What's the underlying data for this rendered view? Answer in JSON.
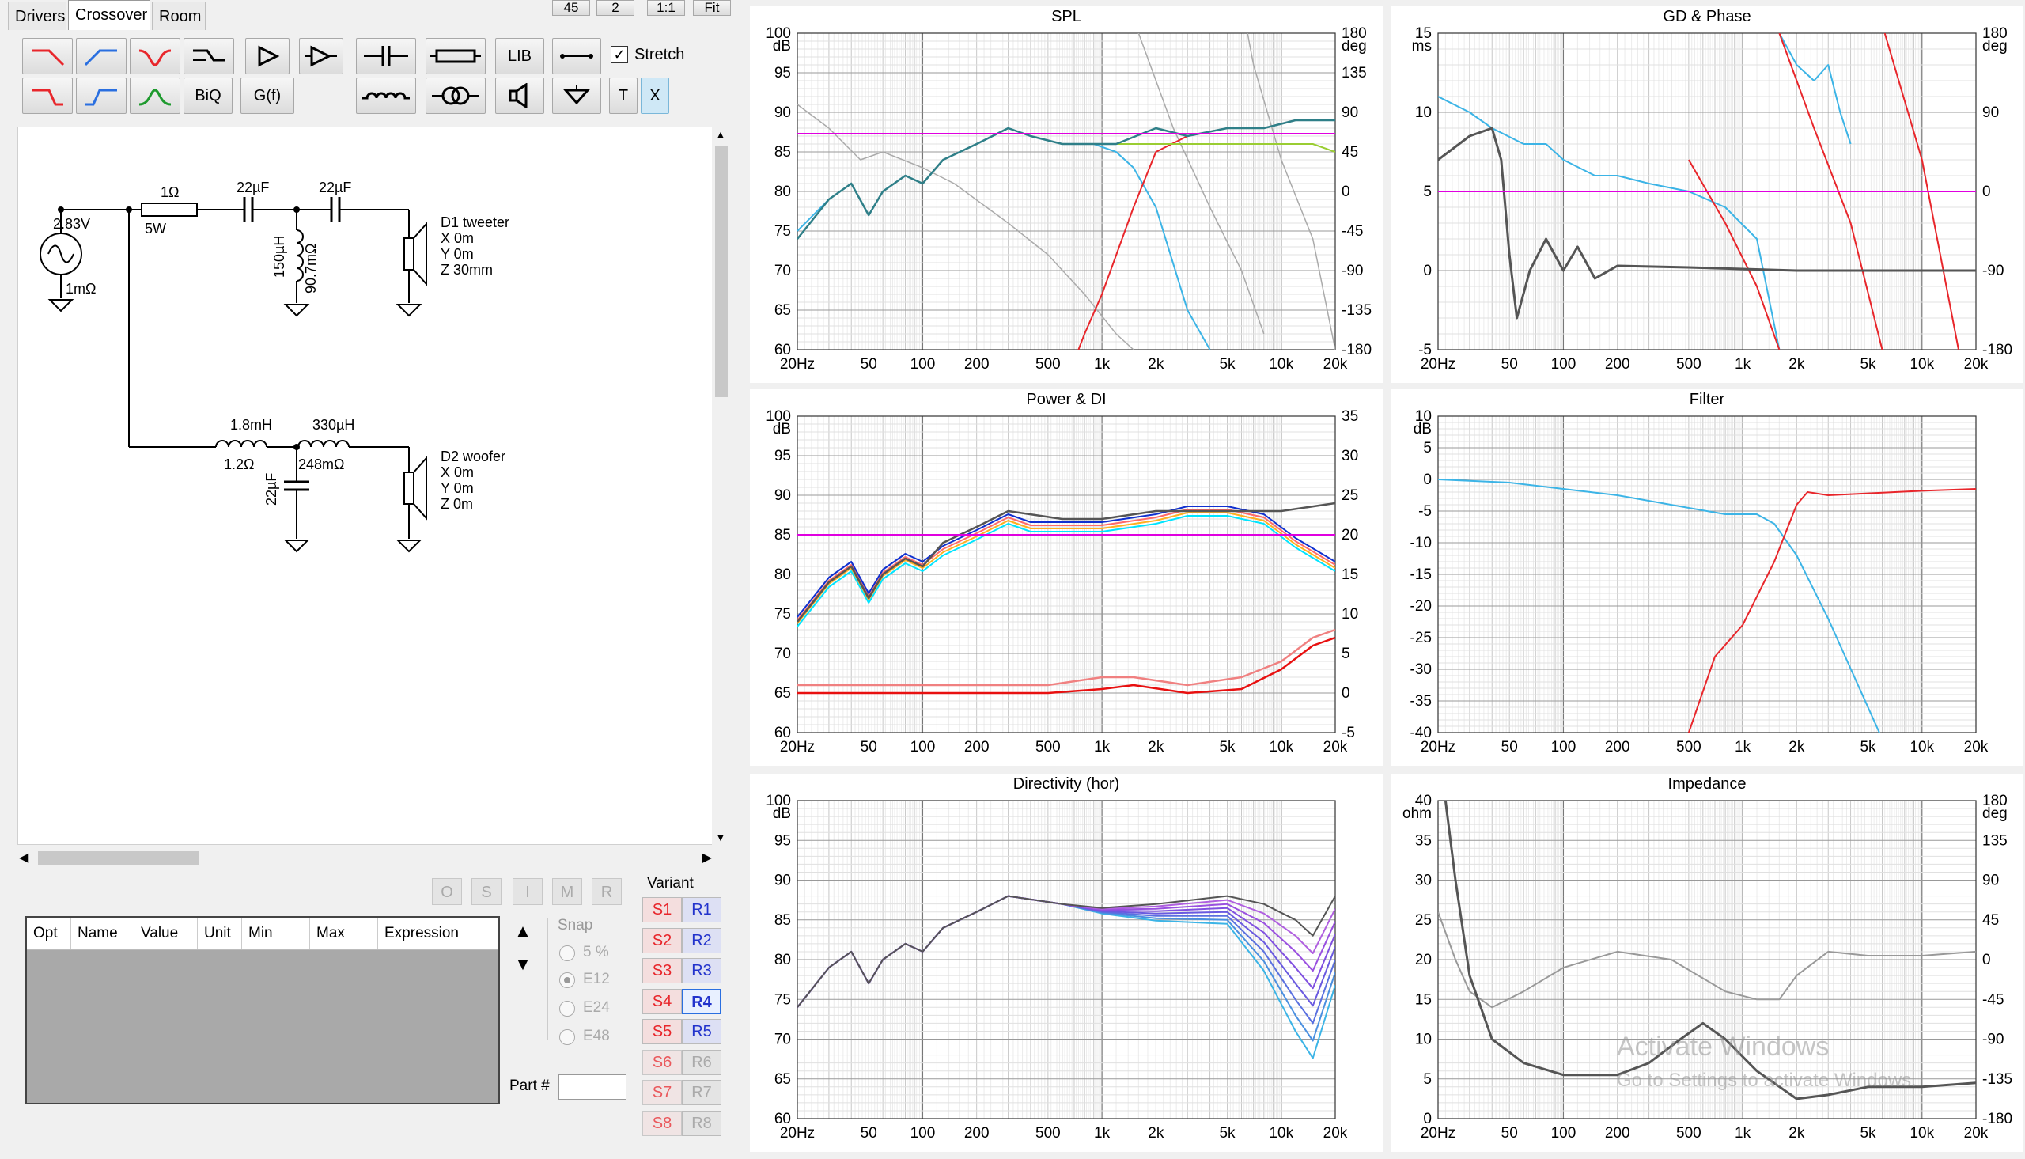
{
  "tabs": [
    "Drivers",
    "Crossover",
    "Room"
  ],
  "active_tab": "Crossover",
  "top_buttons": [
    "45",
    "2",
    "1:1",
    "Fit"
  ],
  "toolbar": {
    "biq": "BiQ",
    "gf": "G(f)",
    "lib": "LIB",
    "t": "T",
    "x": "X",
    "stretch_label": "Stretch",
    "stretch_checked": true
  },
  "schematic": {
    "source_voltage": "2.83V",
    "source_resistance": "1mΩ",
    "r1_value": "1Ω",
    "r1_power": "5W",
    "c1": "22µF",
    "c2": "22µF",
    "l1": "150µH",
    "l1_r": "90.7mΩ",
    "d1_name": "D1 tweeter",
    "d1_x": "X 0m",
    "d1_y": "Y 0m",
    "d1_z": "Z 30mm",
    "l2": "1.8mH",
    "l2_r": "1.2Ω",
    "l3": "330µH",
    "l3_r": "248mΩ",
    "c3": "22µF",
    "d2_name": "D2 woofer",
    "d2_x": "X 0m",
    "d2_y": "Y 0m",
    "d2_z": "Z 0m"
  },
  "opt_buttons": [
    "O",
    "S",
    "I",
    "M",
    "R"
  ],
  "opt_table_headers": [
    "Opt",
    "Name",
    "Value",
    "Unit",
    "Min",
    "Max",
    "Expression"
  ],
  "snap": {
    "label": "Snap",
    "options": [
      "5 %",
      "E12",
      "E24",
      "E48"
    ],
    "selected": "E12"
  },
  "part_label": "Part #",
  "variant": {
    "label": "Variant",
    "s": [
      "S1",
      "S2",
      "S3",
      "S4",
      "S5",
      "S6",
      "S7",
      "S8"
    ],
    "r": [
      "R1",
      "R2",
      "R3",
      "R4",
      "R5",
      "R6",
      "R7",
      "R8"
    ],
    "selected": "R4"
  },
  "charts": {
    "spl": {
      "title": "SPL",
      "y_left_unit": "dB",
      "y_right_unit": "deg",
      "y_left": [
        "100",
        "95",
        "90",
        "85",
        "80",
        "75",
        "70",
        "65",
        "60"
      ],
      "y_right": [
        "180",
        "135",
        "90",
        "45",
        "0",
        "-45",
        "-90",
        "-135",
        "-180"
      ]
    },
    "gd": {
      "title": "GD & Phase",
      "y_left_unit": "ms",
      "y_right_unit": "deg",
      "y_left": [
        "15",
        "10",
        "5",
        "0",
        "-5"
      ],
      "y_right": [
        "180",
        "90",
        "0",
        "-90",
        "-180"
      ]
    },
    "power": {
      "title": "Power & DI",
      "y_left_unit": "dB",
      "y_left": [
        "100",
        "95",
        "90",
        "85",
        "80",
        "75",
        "70",
        "65",
        "60"
      ],
      "y_right": [
        "35",
        "30",
        "25",
        "20",
        "15",
        "10",
        "5",
        "0",
        "-5"
      ]
    },
    "filter": {
      "title": "Filter",
      "y_left_unit": "dB",
      "y_left": [
        "10",
        "5",
        "0",
        "-5",
        "-10",
        "-15",
        "-20",
        "-25",
        "-30",
        "-35",
        "-40"
      ]
    },
    "directivity": {
      "title": "Directivity (hor)",
      "y_left_unit": "dB",
      "y_left": [
        "100",
        "95",
        "90",
        "85",
        "80",
        "75",
        "70",
        "65",
        "60"
      ]
    },
    "impedance": {
      "title": "Impedance",
      "y_left_unit": "ohm",
      "y_right_unit": "deg",
      "y_left": [
        "40",
        "35",
        "30",
        "25",
        "20",
        "15",
        "10",
        "5",
        "0"
      ],
      "y_right": [
        "180",
        "135",
        "90",
        "45",
        "0",
        "-45",
        "-90",
        "-135",
        "-180"
      ]
    },
    "x_ticks": [
      "20Hz",
      "50",
      "100",
      "200",
      "500",
      "1k",
      "2k",
      "5k",
      "10k",
      "20k"
    ]
  },
  "watermark": {
    "line1": "Activate Windows",
    "line2": "Go to Settings to activate Windows."
  },
  "colors": {
    "tweeter": "#e8262b",
    "woofer": "#3cb4e6",
    "sum": "#555555",
    "target": "#e000e0"
  }
}
